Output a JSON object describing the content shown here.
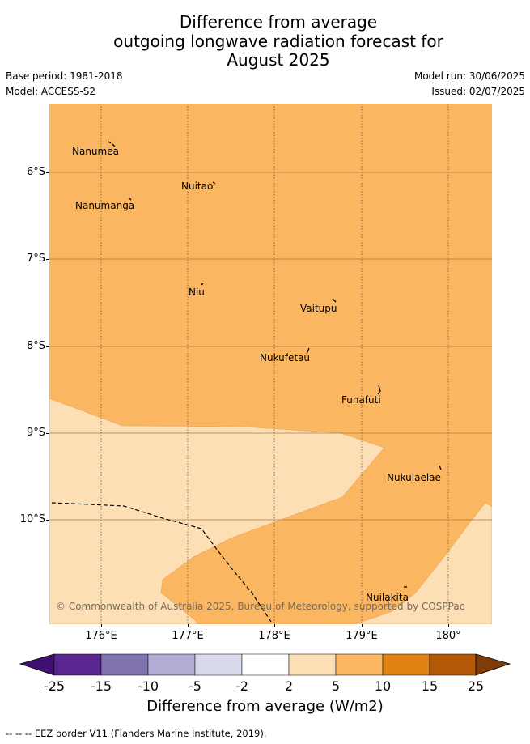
{
  "title": {
    "line1": "Difference from average",
    "line2": "outgoing longwave radiation forecast for",
    "line3": "August 2025"
  },
  "meta": {
    "base_period": "Base period: 1981-2018",
    "model": "Model: ACCESS-S2",
    "model_run": "Model run: 30/06/2025",
    "issued": "Issued: 02/07/2025"
  },
  "map": {
    "lat_labels": [
      "6°S",
      "7°S",
      "8°S",
      "9°S",
      "10°S"
    ],
    "lon_labels": [
      "176°E",
      "177°E",
      "178°E",
      "179°E",
      "180°"
    ],
    "places": [
      {
        "name": "Nanumea"
      },
      {
        "name": "Nuitao"
      },
      {
        "name": "Nanumanga"
      },
      {
        "name": "Niu"
      },
      {
        "name": "Vaitupu"
      },
      {
        "name": "Nukufetau"
      },
      {
        "name": "Funafuti"
      },
      {
        "name": "Nukulaelae"
      },
      {
        "name": "Nuilakita"
      }
    ],
    "copyright": "© Commonwealth of Australia 2025, Bureau of Meteorology, supported by COSPPac",
    "fill_colors": {
      "category_5_to_10": "#fbb661",
      "category_2_to_5": "#fddfb6"
    }
  },
  "colorbar": {
    "title": "Difference from average (W/m2)",
    "labels": [
      "-25",
      "-15",
      "-10",
      "-5",
      "-2",
      "2",
      "5",
      "10",
      "15",
      "25"
    ],
    "colors": [
      "#3f0f72",
      "#5a2690",
      "#8073ad",
      "#b2abd3",
      "#d9d9ec",
      "#ffffff",
      "#fddfb6",
      "#fbb661",
      "#e08214",
      "#b35806",
      "#7f3b08"
    ]
  },
  "legend": {
    "text": "--  --  -- EEZ border V11 (Flanders Marine Institute, 2019)."
  }
}
